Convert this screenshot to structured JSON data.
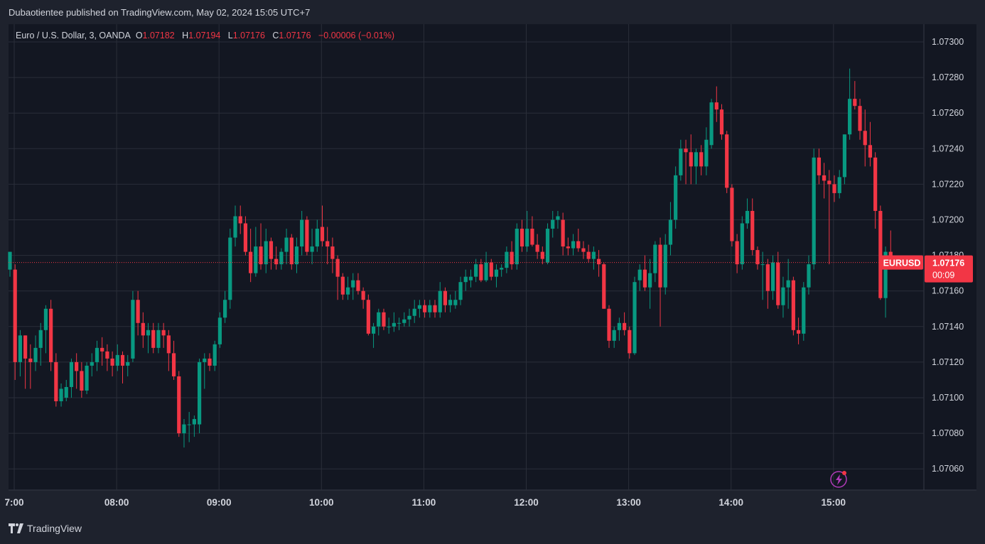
{
  "header": {
    "published_by": "Dubaotientee published on TradingView.com, May 02, 2024 15:05 UTC+7"
  },
  "legend": {
    "symbol": "Euro / U.S. Dollar, 3, OANDA",
    "o_label": "O",
    "o_value": "1.07182",
    "h_label": "H",
    "h_value": "1.07194",
    "l_label": "L",
    "l_value": "1.07176",
    "c_label": "C",
    "c_value": "1.07176",
    "change": "−0.00006 (−0.01%)"
  },
  "price_tag": {
    "symbol": "EURUSD",
    "price": "1.07176",
    "countdown": "00:09"
  },
  "footer": {
    "brand": "TradingView"
  },
  "colors": {
    "up": "#089981",
    "down": "#f23645",
    "background": "#131722",
    "grid": "#2a2e39",
    "text": "#d1d4dc"
  },
  "chart_data": {
    "type": "candlestick",
    "interval_minutes": 3,
    "y_ticks": [
      "1.07300",
      "1.07280",
      "1.07260",
      "1.07240",
      "1.07220",
      "1.07200",
      "1.07180",
      "1.07160",
      "1.07140",
      "1.07120",
      "1.07100",
      "1.07080",
      "1.07060"
    ],
    "ylim": [
      1.0705,
      1.0731
    ],
    "x_ticks": [
      "7:00",
      "08:00",
      "09:00",
      "10:00",
      "11:00",
      "12:00",
      "13:00",
      "14:00",
      "15:00"
    ],
    "x_start": "07:00",
    "last_price": 1.07176,
    "grid": true,
    "candles": [
      {
        "o": 1.07172,
        "h": 1.07182,
        "l": 1.07168,
        "c": 1.07182
      },
      {
        "o": 1.07172,
        "h": 1.07175,
        "l": 1.0711,
        "c": 1.0712
      },
      {
        "o": 1.0712,
        "h": 1.07138,
        "l": 1.07112,
        "c": 1.07135
      },
      {
        "o": 1.07135,
        "h": 1.07135,
        "l": 1.07105,
        "c": 1.07122
      },
      {
        "o": 1.07122,
        "h": 1.0713,
        "l": 1.07105,
        "c": 1.0712
      },
      {
        "o": 1.0712,
        "h": 1.07135,
        "l": 1.07115,
        "c": 1.07128
      },
      {
        "o": 1.07128,
        "h": 1.07142,
        "l": 1.07118,
        "c": 1.07138
      },
      {
        "o": 1.07138,
        "h": 1.07152,
        "l": 1.07125,
        "c": 1.0715
      },
      {
        "o": 1.0715,
        "h": 1.07155,
        "l": 1.07115,
        "c": 1.0712
      },
      {
        "o": 1.0712,
        "h": 1.07125,
        "l": 1.07095,
        "c": 1.07098
      },
      {
        "o": 1.07098,
        "h": 1.07108,
        "l": 1.07095,
        "c": 1.07105
      },
      {
        "o": 1.071,
        "h": 1.0711,
        "l": 1.07098,
        "c": 1.07106
      },
      {
        "o": 1.07106,
        "h": 1.07122,
        "l": 1.071,
        "c": 1.0712
      },
      {
        "o": 1.0712,
        "h": 1.07125,
        "l": 1.07105,
        "c": 1.07115
      },
      {
        "o": 1.07115,
        "h": 1.0712,
        "l": 1.071,
        "c": 1.07104
      },
      {
        "o": 1.07104,
        "h": 1.0712,
        "l": 1.07102,
        "c": 1.07118
      },
      {
        "o": 1.07118,
        "h": 1.07125,
        "l": 1.07112,
        "c": 1.0712
      },
      {
        "o": 1.0712,
        "h": 1.07132,
        "l": 1.07115,
        "c": 1.07128
      },
      {
        "o": 1.07128,
        "h": 1.07134,
        "l": 1.07118,
        "c": 1.07126
      },
      {
        "o": 1.07126,
        "h": 1.0713,
        "l": 1.07115,
        "c": 1.07122
      },
      {
        "o": 1.07122,
        "h": 1.07126,
        "l": 1.07112,
        "c": 1.07118
      },
      {
        "o": 1.07118,
        "h": 1.0713,
        "l": 1.07115,
        "c": 1.07124
      },
      {
        "o": 1.07124,
        "h": 1.07126,
        "l": 1.07108,
        "c": 1.07118
      },
      {
        "o": 1.07118,
        "h": 1.07124,
        "l": 1.07112,
        "c": 1.0712
      },
      {
        "o": 1.07122,
        "h": 1.0716,
        "l": 1.0712,
        "c": 1.07155
      },
      {
        "o": 1.07155,
        "h": 1.0716,
        "l": 1.07135,
        "c": 1.07142
      },
      {
        "o": 1.07142,
        "h": 1.07148,
        "l": 1.07128,
        "c": 1.07135
      },
      {
        "o": 1.07135,
        "h": 1.07142,
        "l": 1.07125,
        "c": 1.07138
      },
      {
        "o": 1.07138,
        "h": 1.07142,
        "l": 1.07125,
        "c": 1.07128
      },
      {
        "o": 1.07128,
        "h": 1.07142,
        "l": 1.07125,
        "c": 1.07138
      },
      {
        "o": 1.07138,
        "h": 1.07142,
        "l": 1.07128,
        "c": 1.07135
      },
      {
        "o": 1.07135,
        "h": 1.07138,
        "l": 1.07115,
        "c": 1.07125
      },
      {
        "o": 1.07125,
        "h": 1.07132,
        "l": 1.0711,
        "c": 1.07112
      },
      {
        "o": 1.07112,
        "h": 1.07115,
        "l": 1.07078,
        "c": 1.0708
      },
      {
        "o": 1.0708,
        "h": 1.07088,
        "l": 1.07072,
        "c": 1.07085
      },
      {
        "o": 1.07085,
        "h": 1.07092,
        "l": 1.07075,
        "c": 1.07085
      },
      {
        "o": 1.07085,
        "h": 1.0709,
        "l": 1.07078,
        "c": 1.07088
      },
      {
        "o": 1.07085,
        "h": 1.07122,
        "l": 1.0708,
        "c": 1.0712
      },
      {
        "o": 1.0712,
        "h": 1.07125,
        "l": 1.07105,
        "c": 1.07122
      },
      {
        "o": 1.07122,
        "h": 1.07125,
        "l": 1.07115,
        "c": 1.07118
      },
      {
        "o": 1.07118,
        "h": 1.07132,
        "l": 1.07115,
        "c": 1.0713
      },
      {
        "o": 1.0713,
        "h": 1.07148,
        "l": 1.07128,
        "c": 1.07145
      },
      {
        "o": 1.07145,
        "h": 1.0716,
        "l": 1.07142,
        "c": 1.07155
      },
      {
        "o": 1.07155,
        "h": 1.07195,
        "l": 1.0715,
        "c": 1.0719
      },
      {
        "o": 1.0719,
        "h": 1.07208,
        "l": 1.07185,
        "c": 1.07202
      },
      {
        "o": 1.07202,
        "h": 1.07208,
        "l": 1.07192,
        "c": 1.07198
      },
      {
        "o": 1.07198,
        "h": 1.07202,
        "l": 1.0718,
        "c": 1.07182
      },
      {
        "o": 1.07182,
        "h": 1.07195,
        "l": 1.07165,
        "c": 1.0717
      },
      {
        "o": 1.0717,
        "h": 1.07196,
        "l": 1.07168,
        "c": 1.07185
      },
      {
        "o": 1.07185,
        "h": 1.07198,
        "l": 1.07172,
        "c": 1.07175
      },
      {
        "o": 1.07175,
        "h": 1.07195,
        "l": 1.0717,
        "c": 1.07188
      },
      {
        "o": 1.07188,
        "h": 1.0719,
        "l": 1.07172,
        "c": 1.07178
      },
      {
        "o": 1.07178,
        "h": 1.07185,
        "l": 1.07172,
        "c": 1.07175
      },
      {
        "o": 1.07175,
        "h": 1.07184,
        "l": 1.07172,
        "c": 1.07182
      },
      {
        "o": 1.07182,
        "h": 1.07195,
        "l": 1.07175,
        "c": 1.0719
      },
      {
        "o": 1.0719,
        "h": 1.07192,
        "l": 1.07172,
        "c": 1.07175
      },
      {
        "o": 1.07175,
        "h": 1.0719,
        "l": 1.0717,
        "c": 1.07185
      },
      {
        "o": 1.07185,
        "h": 1.07205,
        "l": 1.0718,
        "c": 1.072
      },
      {
        "o": 1.072,
        "h": 1.07202,
        "l": 1.0718,
        "c": 1.07182
      },
      {
        "o": 1.07182,
        "h": 1.07195,
        "l": 1.07175,
        "c": 1.07185
      },
      {
        "o": 1.07185,
        "h": 1.072,
        "l": 1.07182,
        "c": 1.07195
      },
      {
        "o": 1.07196,
        "h": 1.07208,
        "l": 1.07185,
        "c": 1.07188
      },
      {
        "o": 1.07188,
        "h": 1.07196,
        "l": 1.07175,
        "c": 1.07185
      },
      {
        "o": 1.07185,
        "h": 1.0719,
        "l": 1.0717,
        "c": 1.07178
      },
      {
        "o": 1.07178,
        "h": 1.0718,
        "l": 1.07155,
        "c": 1.07168
      },
      {
        "o": 1.07168,
        "h": 1.0717,
        "l": 1.07155,
        "c": 1.07158
      },
      {
        "o": 1.07158,
        "h": 1.07168,
        "l": 1.07155,
        "c": 1.07162
      },
      {
        "o": 1.07162,
        "h": 1.0717,
        "l": 1.07155,
        "c": 1.07166
      },
      {
        "o": 1.07166,
        "h": 1.0717,
        "l": 1.07158,
        "c": 1.0716
      },
      {
        "o": 1.0716,
        "h": 1.07162,
        "l": 1.0715,
        "c": 1.07155
      },
      {
        "o": 1.07155,
        "h": 1.07158,
        "l": 1.07135,
        "c": 1.07136
      },
      {
        "o": 1.07136,
        "h": 1.07142,
        "l": 1.07128,
        "c": 1.0714
      },
      {
        "o": 1.0714,
        "h": 1.0715,
        "l": 1.07135,
        "c": 1.07148
      },
      {
        "o": 1.07148,
        "h": 1.0715,
        "l": 1.07138,
        "c": 1.0714
      },
      {
        "o": 1.0714,
        "h": 1.07145,
        "l": 1.07136,
        "c": 1.0714
      },
      {
        "o": 1.0714,
        "h": 1.07148,
        "l": 1.07137,
        "c": 1.07142
      },
      {
        "o": 1.07142,
        "h": 1.07145,
        "l": 1.07138,
        "c": 1.07142
      },
      {
        "o": 1.07142,
        "h": 1.07148,
        "l": 1.0714,
        "c": 1.07144
      },
      {
        "o": 1.07144,
        "h": 1.0715,
        "l": 1.0714,
        "c": 1.07146
      },
      {
        "o": 1.07146,
        "h": 1.07155,
        "l": 1.07142,
        "c": 1.0715
      },
      {
        "o": 1.0715,
        "h": 1.07155,
        "l": 1.07145,
        "c": 1.07152
      },
      {
        "o": 1.07152,
        "h": 1.07155,
        "l": 1.07145,
        "c": 1.07148
      },
      {
        "o": 1.07148,
        "h": 1.07155,
        "l": 1.07145,
        "c": 1.07152
      },
      {
        "o": 1.07152,
        "h": 1.07155,
        "l": 1.07145,
        "c": 1.07148
      },
      {
        "o": 1.07148,
        "h": 1.07165,
        "l": 1.07145,
        "c": 1.0716
      },
      {
        "o": 1.0716,
        "h": 1.07162,
        "l": 1.07148,
        "c": 1.07152
      },
      {
        "o": 1.07152,
        "h": 1.07158,
        "l": 1.07148,
        "c": 1.07155
      },
      {
        "o": 1.07152,
        "h": 1.0716,
        "l": 1.0715,
        "c": 1.07155
      },
      {
        "o": 1.07155,
        "h": 1.07168,
        "l": 1.07152,
        "c": 1.07165
      },
      {
        "o": 1.07165,
        "h": 1.07172,
        "l": 1.0716,
        "c": 1.07168
      },
      {
        "o": 1.07166,
        "h": 1.07172,
        "l": 1.07162,
        "c": 1.07168
      },
      {
        "o": 1.07168,
        "h": 1.07178,
        "l": 1.07165,
        "c": 1.07175
      },
      {
        "o": 1.07175,
        "h": 1.07178,
        "l": 1.07165,
        "c": 1.07166
      },
      {
        "o": 1.07166,
        "h": 1.07182,
        "l": 1.07165,
        "c": 1.07176
      },
      {
        "o": 1.07176,
        "h": 1.07178,
        "l": 1.07166,
        "c": 1.07168
      },
      {
        "o": 1.07168,
        "h": 1.07175,
        "l": 1.07162,
        "c": 1.07172
      },
      {
        "o": 1.07172,
        "h": 1.07175,
        "l": 1.07168,
        "c": 1.07173
      },
      {
        "o": 1.07173,
        "h": 1.07185,
        "l": 1.0717,
        "c": 1.07182
      },
      {
        "o": 1.07182,
        "h": 1.07188,
        "l": 1.07172,
        "c": 1.07175
      },
      {
        "o": 1.07175,
        "h": 1.07198,
        "l": 1.07172,
        "c": 1.07195
      },
      {
        "o": 1.07195,
        "h": 1.072,
        "l": 1.07182,
        "c": 1.07185
      },
      {
        "o": 1.07185,
        "h": 1.07205,
        "l": 1.07182,
        "c": 1.07195
      },
      {
        "o": 1.07195,
        "h": 1.07202,
        "l": 1.07185,
        "c": 1.07186
      },
      {
        "o": 1.07186,
        "h": 1.07192,
        "l": 1.07178,
        "c": 1.07182
      },
      {
        "o": 1.07182,
        "h": 1.07185,
        "l": 1.07175,
        "c": 1.07178
      },
      {
        "o": 1.07176,
        "h": 1.07198,
        "l": 1.07175,
        "c": 1.07195
      },
      {
        "o": 1.07195,
        "h": 1.07205,
        "l": 1.0719,
        "c": 1.072
      },
      {
        "o": 1.072,
        "h": 1.07205,
        "l": 1.07195,
        "c": 1.07202
      },
      {
        "o": 1.072,
        "h": 1.07204,
        "l": 1.0718,
        "c": 1.07185
      },
      {
        "o": 1.07185,
        "h": 1.0719,
        "l": 1.0718,
        "c": 1.07184
      },
      {
        "o": 1.07184,
        "h": 1.07192,
        "l": 1.0718,
        "c": 1.07188
      },
      {
        "o": 1.07188,
        "h": 1.07195,
        "l": 1.07182,
        "c": 1.07184
      },
      {
        "o": 1.07184,
        "h": 1.07188,
        "l": 1.07178,
        "c": 1.07182
      },
      {
        "o": 1.07182,
        "h": 1.07186,
        "l": 1.07176,
        "c": 1.07178
      },
      {
        "o": 1.07178,
        "h": 1.07185,
        "l": 1.07172,
        "c": 1.07182
      },
      {
        "o": 1.07178,
        "h": 1.07183,
        "l": 1.07168,
        "c": 1.07175
      },
      {
        "o": 1.07175,
        "h": 1.07176,
        "l": 1.0715,
        "c": 1.0715
      },
      {
        "o": 1.0715,
        "h": 1.07152,
        "l": 1.07128,
        "c": 1.07132
      },
      {
        "o": 1.07132,
        "h": 1.0714,
        "l": 1.07128,
        "c": 1.07138
      },
      {
        "o": 1.07138,
        "h": 1.07145,
        "l": 1.07132,
        "c": 1.07142
      },
      {
        "o": 1.07142,
        "h": 1.07148,
        "l": 1.07135,
        "c": 1.07138
      },
      {
        "o": 1.07138,
        "h": 1.0714,
        "l": 1.07122,
        "c": 1.07125
      },
      {
        "o": 1.07125,
        "h": 1.07168,
        "l": 1.07124,
        "c": 1.07165
      },
      {
        "o": 1.07166,
        "h": 1.07175,
        "l": 1.0716,
        "c": 1.07172
      },
      {
        "o": 1.07172,
        "h": 1.0718,
        "l": 1.0716,
        "c": 1.07162
      },
      {
        "o": 1.07162,
        "h": 1.07178,
        "l": 1.0715,
        "c": 1.0717
      },
      {
        "o": 1.0717,
        "h": 1.07188,
        "l": 1.07165,
        "c": 1.07186
      },
      {
        "o": 1.07186,
        "h": 1.0719,
        "l": 1.0714,
        "c": 1.07162
      },
      {
        "o": 1.07162,
        "h": 1.07192,
        "l": 1.07158,
        "c": 1.07186
      },
      {
        "o": 1.07186,
        "h": 1.0721,
        "l": 1.0718,
        "c": 1.072
      },
      {
        "o": 1.072,
        "h": 1.0723,
        "l": 1.07195,
        "c": 1.07225
      },
      {
        "o": 1.07225,
        "h": 1.07245,
        "l": 1.07222,
        "c": 1.0724
      },
      {
        "o": 1.0724,
        "h": 1.07245,
        "l": 1.0722,
        "c": 1.07238
      },
      {
        "o": 1.07238,
        "h": 1.07248,
        "l": 1.0722,
        "c": 1.0723
      },
      {
        "o": 1.0723,
        "h": 1.0724,
        "l": 1.0722,
        "c": 1.07238
      },
      {
        "o": 1.07238,
        "h": 1.07242,
        "l": 1.07225,
        "c": 1.0723
      },
      {
        "o": 1.0723,
        "h": 1.07252,
        "l": 1.07225,
        "c": 1.07245
      },
      {
        "o": 1.07242,
        "h": 1.07268,
        "l": 1.0724,
        "c": 1.07266
      },
      {
        "o": 1.07266,
        "h": 1.07275,
        "l": 1.07255,
        "c": 1.07262
      },
      {
        "o": 1.07262,
        "h": 1.07265,
        "l": 1.07245,
        "c": 1.07248
      },
      {
        "o": 1.07248,
        "h": 1.0725,
        "l": 1.07215,
        "c": 1.07218
      },
      {
        "o": 1.07218,
        "h": 1.0722,
        "l": 1.07185,
        "c": 1.07188
      },
      {
        "o": 1.07188,
        "h": 1.07192,
        "l": 1.0717,
        "c": 1.07175
      },
      {
        "o": 1.07175,
        "h": 1.07202,
        "l": 1.07172,
        "c": 1.07198
      },
      {
        "o": 1.07198,
        "h": 1.07212,
        "l": 1.07195,
        "c": 1.07205
      },
      {
        "o": 1.07205,
        "h": 1.07212,
        "l": 1.0718,
        "c": 1.07183
      },
      {
        "o": 1.07183,
        "h": 1.07185,
        "l": 1.07172,
        "c": 1.07175
      },
      {
        "o": 1.07175,
        "h": 1.07182,
        "l": 1.07155,
        "c": 1.07175
      },
      {
        "o": 1.07175,
        "h": 1.07178,
        "l": 1.0715,
        "c": 1.0716
      },
      {
        "o": 1.0716,
        "h": 1.0718,
        "l": 1.07155,
        "c": 1.07176
      },
      {
        "o": 1.07176,
        "h": 1.07182,
        "l": 1.0715,
        "c": 1.07152
      },
      {
        "o": 1.07152,
        "h": 1.07168,
        "l": 1.07145,
        "c": 1.07162
      },
      {
        "o": 1.07162,
        "h": 1.07178,
        "l": 1.0715,
        "c": 1.07166
      },
      {
        "o": 1.07166,
        "h": 1.07168,
        "l": 1.07135,
        "c": 1.07138
      },
      {
        "o": 1.07138,
        "h": 1.07145,
        "l": 1.0713,
        "c": 1.07136
      },
      {
        "o": 1.07136,
        "h": 1.07165,
        "l": 1.07132,
        "c": 1.07162
      },
      {
        "o": 1.07162,
        "h": 1.0718,
        "l": 1.07158,
        "c": 1.07175
      },
      {
        "o": 1.07175,
        "h": 1.0724,
        "l": 1.07172,
        "c": 1.07235
      },
      {
        "o": 1.07235,
        "h": 1.0724,
        "l": 1.0722,
        "c": 1.07225
      },
      {
        "o": 1.07225,
        "h": 1.07232,
        "l": 1.07212,
        "c": 1.07222
      },
      {
        "o": 1.07222,
        "h": 1.07228,
        "l": 1.07175,
        "c": 1.0722
      },
      {
        "o": 1.0722,
        "h": 1.07225,
        "l": 1.0721,
        "c": 1.07215
      },
      {
        "o": 1.07215,
        "h": 1.07228,
        "l": 1.07212,
        "c": 1.07224
      },
      {
        "o": 1.07224,
        "h": 1.07248,
        "l": 1.0722,
        "c": 1.07248
      },
      {
        "o": 1.07248,
        "h": 1.07285,
        "l": 1.07245,
        "c": 1.07268
      },
      {
        "o": 1.07268,
        "h": 1.07278,
        "l": 1.07262,
        "c": 1.07264
      },
      {
        "o": 1.07264,
        "h": 1.07268,
        "l": 1.07245,
        "c": 1.0725
      },
      {
        "o": 1.0725,
        "h": 1.07262,
        "l": 1.0723,
        "c": 1.07242
      },
      {
        "o": 1.07242,
        "h": 1.07255,
        "l": 1.0723,
        "c": 1.07235
      },
      {
        "o": 1.07235,
        "h": 1.07238,
        "l": 1.07195,
        "c": 1.07205
      },
      {
        "o": 1.07205,
        "h": 1.07208,
        "l": 1.07155,
        "c": 1.07156
      },
      {
        "o": 1.07156,
        "h": 1.07185,
        "l": 1.07145,
        "c": 1.07182
      },
      {
        "o": 1.07182,
        "h": 1.07194,
        "l": 1.07176,
        "c": 1.07176
      }
    ]
  }
}
